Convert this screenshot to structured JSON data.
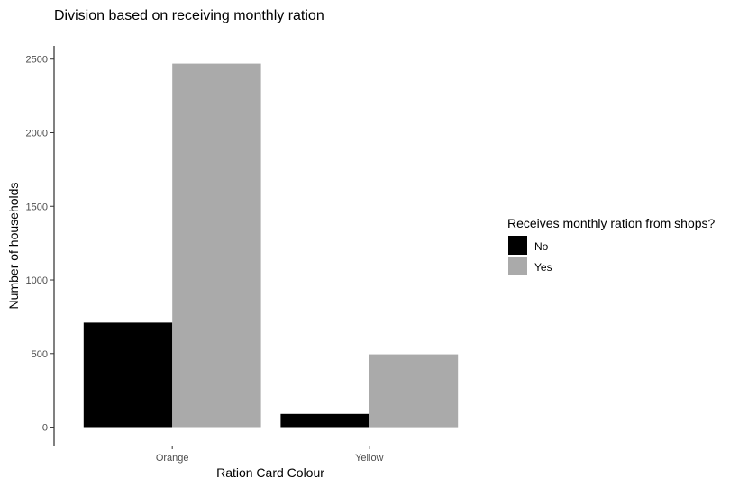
{
  "chart_data": {
    "type": "bar",
    "title": "Division based on receiving monthly ration",
    "xlabel": "Ration Card Colour",
    "ylabel": "Number of households",
    "categories": [
      "Orange",
      "Yellow"
    ],
    "series": [
      {
        "name": "No",
        "values": [
          710,
          90
        ],
        "color": "#000000"
      },
      {
        "name": "Yes",
        "values": [
          2470,
          495
        ],
        "color": "#aaaaaa"
      }
    ],
    "ylim": [
      -125,
      2590
    ],
    "yticks": [
      0,
      500,
      1000,
      1500,
      2000,
      2500
    ],
    "grid": false,
    "legend": {
      "title": "Receives monthly ration from shops?",
      "placement": "right",
      "items": [
        "No",
        "Yes"
      ]
    }
  }
}
